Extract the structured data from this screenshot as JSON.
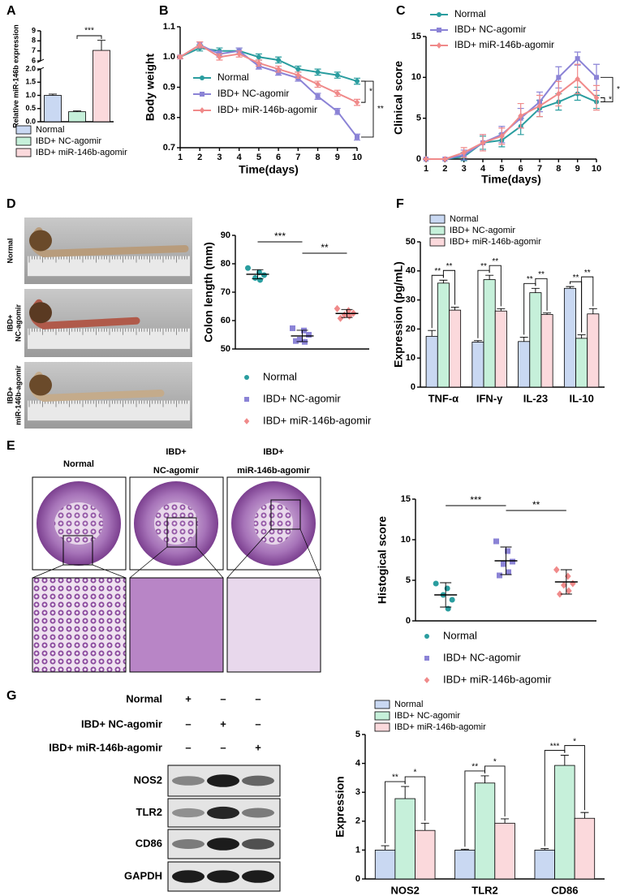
{
  "panels": [
    "A",
    "B",
    "C",
    "D",
    "E",
    "F",
    "G"
  ],
  "photo_labels": [
    [
      "Normal"
    ],
    [
      "IBD+",
      "NC-agomir"
    ],
    [
      "IBD+",
      "miR-146b-agomir"
    ]
  ],
  "histology_labels": [
    [
      "Normal"
    ],
    [
      "IBD+",
      "NC-agomir"
    ],
    [
      "IBD+",
      "miR-146b-agomir"
    ]
  ],
  "blot": {
    "treatments": [
      "Normal",
      "IBD+ NC-agomir",
      "IBD+ miR-146b-agomir"
    ],
    "signs": [
      [
        "+",
        "–",
        "–"
      ],
      [
        "–",
        "+",
        "–"
      ],
      [
        "–",
        "–",
        "+"
      ]
    ],
    "proteins": [
      "NOS2",
      "TLR2",
      "CD86",
      "GAPDH"
    ]
  },
  "chart_data": [
    {
      "type": "bar",
      "y_label": "Relative miR-146b expression",
      "categories": [
        "Normal",
        "IBD+ NC-agomir",
        "IBD+ miR-146b-agomir"
      ],
      "values": [
        1.0,
        0.38,
        7.05
      ],
      "errors": [
        0.05,
        0.03,
        1.0
      ],
      "colors": [
        "#c9d8f2",
        "#c6f0da",
        "#fbd9dc"
      ],
      "ylim": [
        0,
        9
      ],
      "axis_break": [
        2,
        6
      ],
      "yticks": [
        {
          "value": 0,
          "label": "0.0"
        },
        0.5,
        {
          "value": 1,
          "label": "1.0"
        },
        1.5,
        {
          "value": 2,
          "label": "2.0"
        },
        6,
        7,
        8,
        9
      ],
      "annotations": [
        "***"
      ]
    },
    {
      "type": "line",
      "y_label": "Body weight",
      "x_label": "Time(days)",
      "legend": "left",
      "x": [
        1,
        2,
        3,
        4,
        5,
        6,
        7,
        8,
        9,
        10
      ],
      "xlim": [
        1,
        10
      ],
      "xticks": [
        1,
        2,
        3,
        4,
        5,
        6,
        7,
        8,
        9,
        10
      ],
      "ylim": [
        0.7,
        1.1
      ],
      "yticks": [
        0.7,
        0.8,
        0.9,
        {
          "value": 1.0,
          "label": "1.0"
        },
        1.1
      ],
      "series": [
        {
          "name": "Normal",
          "color": "#2a9d9f",
          "marker": "circle",
          "values": [
            1.0,
            1.03,
            1.02,
            1.02,
            1.0,
            0.99,
            0.96,
            0.95,
            0.94,
            0.92
          ],
          "errors": [
            0.005,
            0.01,
            0.01,
            0.01,
            0.01,
            0.01,
            0.01,
            0.01,
            0.01,
            0.01
          ]
        },
        {
          "name": "IBD+ NC-agomir",
          "color": "#8b83d6",
          "marker": "square",
          "values": [
            1.0,
            1.04,
            1.01,
            1.02,
            0.97,
            0.95,
            0.93,
            0.87,
            0.82,
            0.735
          ],
          "errors": [
            0.005,
            0.01,
            0.01,
            0.01,
            0.01,
            0.01,
            0.01,
            0.01,
            0.01,
            0.01
          ]
        },
        {
          "name": "IBD+ miR-146b-agomir",
          "color": "#f08a8a",
          "marker": "diamond",
          "values": [
            1.0,
            1.04,
            1.0,
            1.01,
            0.98,
            0.96,
            0.94,
            0.91,
            0.88,
            0.85
          ],
          "errors": [
            0.005,
            0.01,
            0.01,
            0.01,
            0.01,
            0.01,
            0.01,
            0.01,
            0.01,
            0.01
          ]
        }
      ],
      "annotations": [
        "*",
        "**"
      ]
    },
    {
      "type": "line",
      "y_label": "Clinical score",
      "x_label": "Time(days)",
      "legend": "top",
      "x": [
        1,
        2,
        3,
        4,
        5,
        6,
        7,
        8,
        9,
        10
      ],
      "xlim": [
        1,
        10
      ],
      "xticks": [
        1,
        2,
        3,
        4,
        5,
        6,
        7,
        8,
        9,
        10
      ],
      "ylim": [
        0,
        15
      ],
      "yticks": [
        0,
        5,
        10,
        15
      ],
      "series": [
        {
          "name": "Normal",
          "color": "#2a9d9f",
          "marker": "circle",
          "values": [
            0,
            0,
            0.3,
            2,
            2.3,
            4,
            6.2,
            7,
            8,
            7
          ],
          "errors": [
            0,
            0,
            0.5,
            0.8,
            0.8,
            1,
            1,
            1,
            0.8,
            0.8
          ]
        },
        {
          "name": "IBD+ NC-agomir",
          "color": "#8b83d6",
          "marker": "square",
          "values": [
            0,
            0,
            0.5,
            2,
            3,
            5,
            7,
            10,
            12.3,
            10
          ],
          "errors": [
            0,
            0,
            0.6,
            1,
            1,
            1.2,
            1.2,
            1.3,
            0.8,
            1.6
          ]
        },
        {
          "name": "IBD+ miR-146b-agomir",
          "color": "#f08a8a",
          "marker": "diamond",
          "values": [
            0,
            0,
            0.8,
            2,
            2.8,
            5.3,
            6.5,
            8,
            9.8,
            7.5
          ],
          "errors": [
            0,
            0,
            0.6,
            1,
            1,
            1.5,
            1.3,
            1.5,
            1.8,
            1.5
          ]
        }
      ],
      "annotations": [
        "*",
        "*"
      ]
    },
    {
      "type": "dotplot",
      "y_label": "Colon length (mm)",
      "ylim": [
        50,
        90
      ],
      "yticks": [
        50,
        60,
        70,
        80,
        90
      ],
      "series": [
        {
          "name": "Normal",
          "color": "#2a9d9f",
          "marker": "circle",
          "values": [
            78.5,
            77,
            76,
            75,
            74.3
          ],
          "mean": 76.3,
          "sd": 1.6
        },
        {
          "name": "IBD+ NC-agomir",
          "color": "#8b83d6",
          "marker": "square",
          "values": [
            57.3,
            56.5,
            55,
            53.3,
            52.5,
            52.8
          ],
          "mean": 54.6,
          "sd": 2.0
        },
        {
          "name": "IBD+ miR-146b-agomir",
          "color": "#f08a8a",
          "marker": "diamond",
          "values": [
            64.2,
            63.5,
            62.6,
            62,
            61.6,
            60.8
          ],
          "mean": 62.5,
          "sd": 1.4
        }
      ],
      "annotations": [
        "***",
        "**"
      ]
    },
    {
      "type": "grouped_bar",
      "y_label": "Expression (pg/mL)",
      "categories": [
        "TNF-α",
        "IFN-γ",
        "IL-23",
        "IL-10"
      ],
      "ylim": [
        0,
        50
      ],
      "yticks": [
        0,
        10,
        20,
        30,
        40,
        50
      ],
      "series": [
        {
          "name": "Normal",
          "color": "#c9d8f2",
          "values": [
            17.5,
            15.5,
            15.7,
            34
          ],
          "errors": [
            2,
            0.5,
            1.5,
            0.6
          ]
        },
        {
          "name": "IBD+ NC-agomir",
          "color": "#c6f0da",
          "values": [
            35.8,
            37,
            32.5,
            16.8
          ],
          "errors": [
            1,
            1.5,
            1.5,
            1.2
          ]
        },
        {
          "name": "IBD+ miR-146b-agomir",
          "color": "#fbd9dc",
          "values": [
            26.5,
            26.2,
            25,
            25.2
          ],
          "errors": [
            1,
            0.8,
            0.5,
            1.8
          ]
        }
      ],
      "annotations": [
        "**",
        "**",
        "**",
        "**",
        "**",
        "**",
        "**",
        "**"
      ]
    },
    {
      "type": "dotplot",
      "y_label": "Histogical score",
      "ylim": [
        0,
        15
      ],
      "yticks": [
        0,
        5,
        10,
        15
      ],
      "series": [
        {
          "name": "Normal",
          "color": "#2a9d9f",
          "marker": "circle",
          "values": [
            4.6,
            4.0,
            2.6,
            3.2,
            1.5
          ],
          "mean": 3.2,
          "sd": 1.5
        },
        {
          "name": "IBD+ NC-agomir",
          "color": "#8b83d6",
          "marker": "square",
          "values": [
            9.8,
            8.6,
            7.3,
            7.0,
            6.0,
            5.6
          ],
          "mean": 7.4,
          "sd": 1.7
        },
        {
          "name": "IBD+ miR-146b-agomir",
          "color": "#f08a8a",
          "marker": "diamond",
          "values": [
            6.3,
            5.5,
            4.6,
            4.4,
            3.7,
            3.3
          ],
          "mean": 4.8,
          "sd": 1.5
        }
      ],
      "annotations": [
        "***",
        "**"
      ]
    },
    {
      "type": "grouped_bar",
      "y_label": "Expression",
      "categories": [
        "NOS2",
        "TLR2",
        "CD86"
      ],
      "ylim": [
        0,
        5
      ],
      "yticks": [
        0,
        1,
        2,
        3,
        4,
        5
      ],
      "series": [
        {
          "name": "Normal",
          "color": "#c9d8f2",
          "values": [
            1,
            1,
            1
          ],
          "errors": [
            0.15,
            0.03,
            0.05
          ]
        },
        {
          "name": "IBD+ NC-agomir",
          "color": "#c6f0da",
          "values": [
            2.78,
            3.32,
            3.93
          ],
          "errors": [
            0.42,
            0.25,
            0.35
          ]
        },
        {
          "name": "IBD+ miR-146b-agomir",
          "color": "#fbd9dc",
          "values": [
            1.68,
            1.93,
            2.1
          ],
          "errors": [
            0.25,
            0.15,
            0.2
          ]
        }
      ],
      "annotations": [
        "**",
        "*",
        "**",
        "*",
        "***",
        "*"
      ]
    }
  ]
}
